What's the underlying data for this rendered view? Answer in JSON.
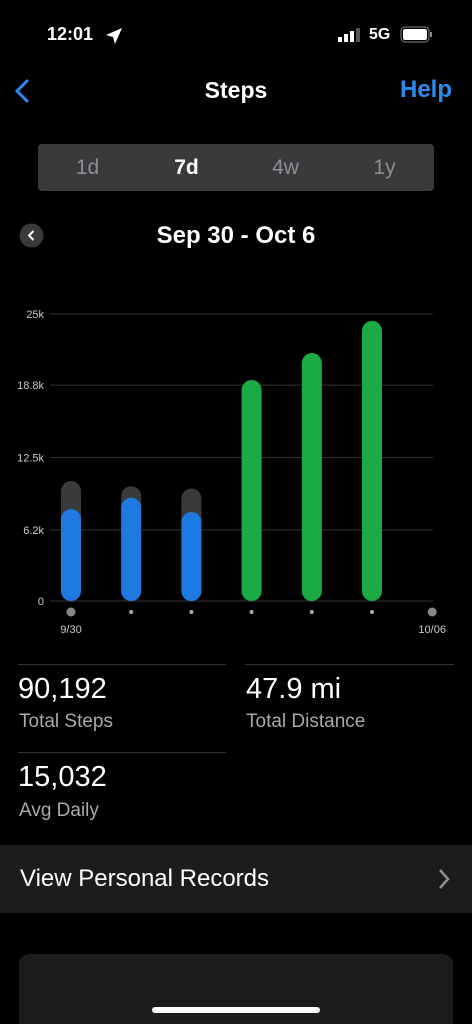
{
  "status_bar": {
    "time": "12:01",
    "network": "5G"
  },
  "nav": {
    "title": "Steps",
    "help": "Help"
  },
  "segments": [
    "1d",
    "7d",
    "4w",
    "1y"
  ],
  "selected_segment": 1,
  "date_range": "Sep 30 - Oct 6",
  "chart_data": {
    "type": "bar",
    "categories": [
      "9/30",
      null,
      null,
      null,
      null,
      null,
      "10/06"
    ],
    "series": [
      {
        "color": "#3a3a3c",
        "values": [
          10450,
          10000,
          9800,
          null,
          null,
          null,
          null
        ]
      },
      {
        "colors": [
          "#1e7ae0",
          "#1e7ae0",
          "#1e7ae0",
          "#1aab45",
          "#1aab45",
          "#1aab45",
          null
        ],
        "values": [
          8000,
          9000,
          7750,
          19250,
          21600,
          24400,
          null
        ]
      }
    ],
    "ylim": [
      0,
      25000
    ],
    "yticks": [
      0,
      {
        "value": 6200,
        "label": "6.2k"
      },
      {
        "value": 12500,
        "label": "12.5k"
      },
      {
        "value": 18800,
        "label": "18.8k"
      },
      {
        "value": 25000,
        "label": "25k"
      }
    ],
    "grid": true
  },
  "stats": [
    {
      "value": "90,192",
      "label": "Total Steps"
    },
    {
      "value": "47.9 mi",
      "label": "Total Distance"
    },
    {
      "value": "15,032",
      "label": "Avg Daily"
    }
  ],
  "records_link": "View Personal Records"
}
